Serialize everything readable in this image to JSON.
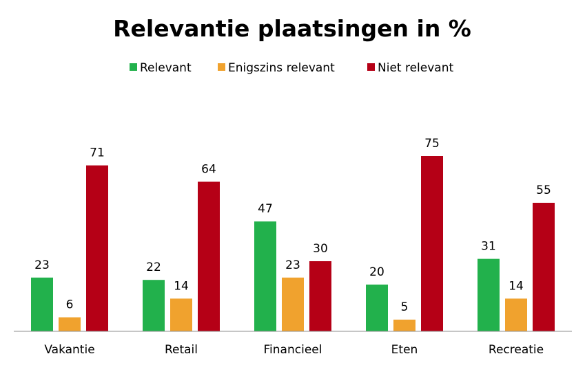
{
  "chart_data": {
    "type": "bar",
    "title": "Relevantie plaatsingen in %",
    "categories": [
      "Vakantie",
      "Retail",
      "Financieel",
      "Eten",
      "Recreatie"
    ],
    "series": [
      {
        "name": "Relevant",
        "color": "#22b14c",
        "values": [
          23,
          22,
          47,
          20,
          31
        ]
      },
      {
        "name": "Enigszins relevant",
        "color": "#f0a22e",
        "values": [
          6,
          14,
          23,
          5,
          14
        ]
      },
      {
        "name": "Niet relevant",
        "color": "#b50016",
        "values": [
          71,
          64,
          30,
          75,
          55
        ]
      }
    ],
    "ylim": [
      0,
      90
    ],
    "grid": false,
    "legend_position": "top-center",
    "data_labels": true
  }
}
